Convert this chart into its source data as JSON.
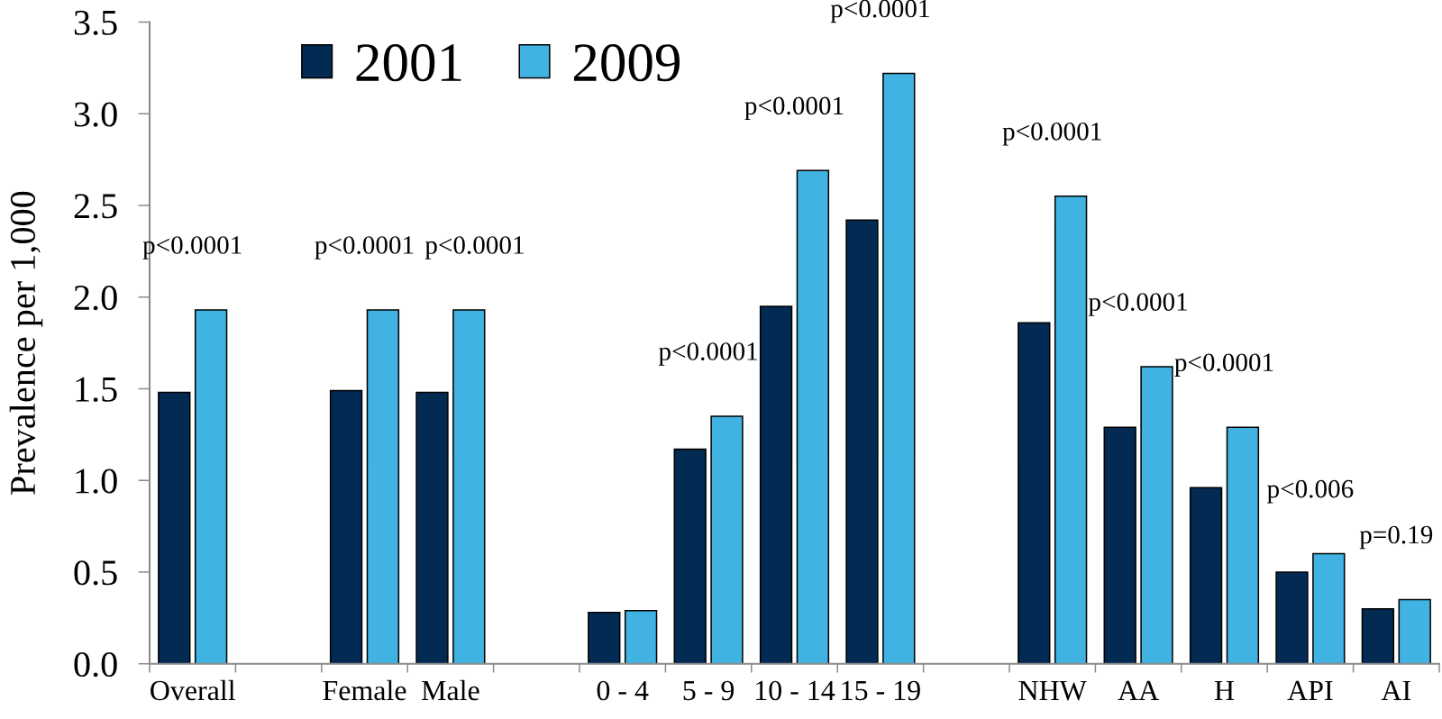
{
  "chart_data": {
    "type": "bar",
    "ylabel": "Prevalence per 1,000",
    "categories": [
      "Overall",
      null,
      "Female",
      "Male",
      null,
      "0 - 4",
      "5 - 9",
      "10 - 14",
      "15 - 19",
      null,
      "NHW",
      "AA",
      "H",
      "API",
      "AI"
    ],
    "series": [
      {
        "name": "2001",
        "color": "#022a53",
        "values": [
          1.48,
          null,
          1.49,
          1.48,
          null,
          0.28,
          1.17,
          1.95,
          2.42,
          null,
          1.86,
          1.29,
          0.96,
          0.5,
          0.3
        ]
      },
      {
        "name": "2009",
        "color": "#41b3e3",
        "values": [
          1.93,
          null,
          1.93,
          1.93,
          null,
          0.29,
          1.35,
          2.69,
          3.22,
          null,
          2.55,
          1.62,
          1.29,
          0.6,
          0.35
        ]
      }
    ],
    "ylim": [
      0,
      3.5
    ],
    "yticks": [
      {
        "value": 0,
        "label": "0.0"
      },
      0.5,
      {
        "value": 1,
        "label": "1.0"
      },
      1.5,
      {
        "value": 2,
        "label": "2.0"
      },
      2.5,
      {
        "value": 3,
        "label": "3.0"
      },
      3.5
    ],
    "legend": "top left",
    "grid": false,
    "annotations": [
      {
        "text": "p<0.0001",
        "x": "Overall",
        "y": 1.93
      },
      {
        "text": "p<0.0001",
        "x": "Female",
        "y": 1.93
      },
      {
        "text": "p<0.0001",
        "x": "Male",
        "y": 1.93
      },
      {
        "text": "p<0.0001",
        "x": "5 - 9",
        "y": 1.35
      },
      {
        "text": "p<0.0001",
        "x": "10 - 14",
        "y": 2.69
      },
      {
        "text": "p<0.0001",
        "x": "15 - 19",
        "y": 3.22
      },
      {
        "text": "p<0.0001",
        "x": "NHW",
        "y": 2.55
      },
      {
        "text": "p<0.0001",
        "x": "AA",
        "y": 1.62
      },
      {
        "text": "p<0.0001",
        "x": "H",
        "y": 1.29
      },
      {
        "text": "p<0.006",
        "x": "API",
        "y": 0.6
      },
      {
        "text": "p=0.19",
        "x": "AI",
        "y": 0.35
      }
    ]
  }
}
